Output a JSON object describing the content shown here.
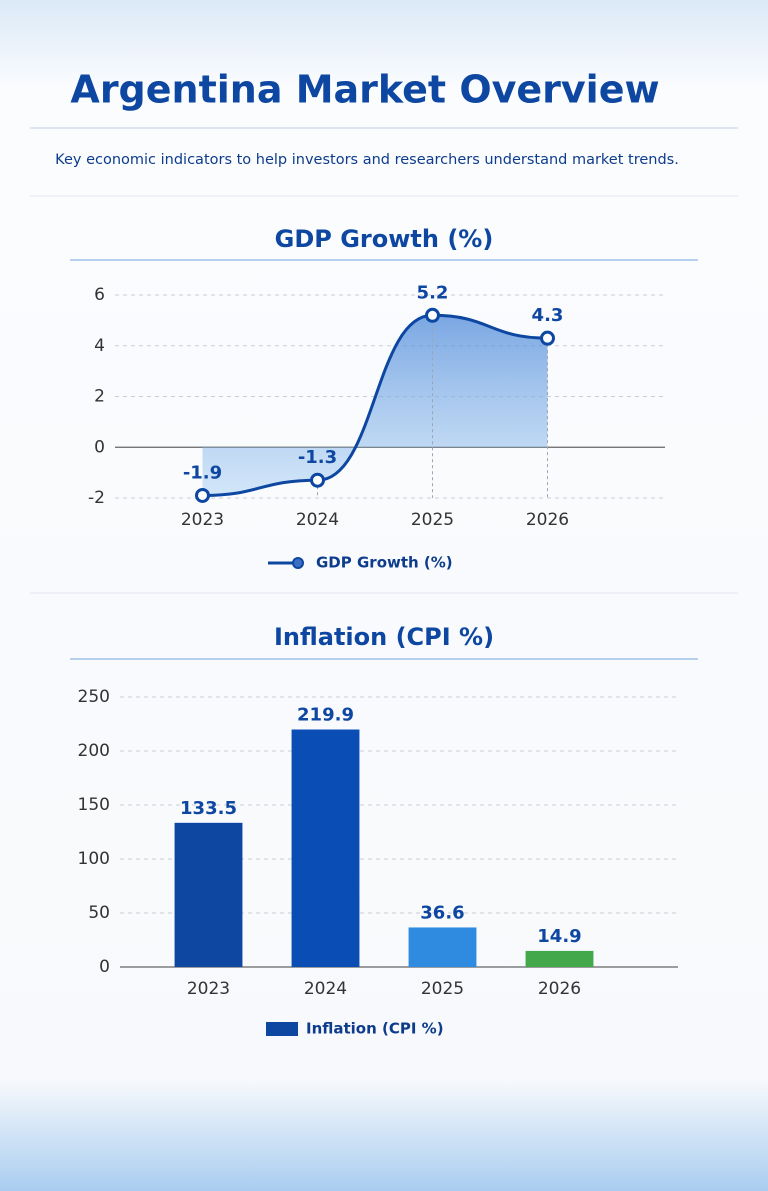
{
  "title": "Argentina Market Overview",
  "subtitle": "Key economic indicators to help investors and researchers understand market trends.",
  "chart_data": [
    {
      "type": "line",
      "title": "GDP Growth (%)",
      "categories": [
        "2023",
        "2024",
        "2025",
        "2026"
      ],
      "series": [
        {
          "name": "GDP Growth (%)",
          "color": "#0d47a1",
          "values": [
            -1.9,
            -1.3,
            5.2,
            4.3
          ]
        }
      ],
      "ylim": [
        -2,
        6
      ],
      "yticks": [
        -2,
        0,
        2,
        4,
        6
      ],
      "grid": true,
      "legend": "bottom"
    },
    {
      "type": "bar",
      "title": "Inflation (CPI %)",
      "categories": [
        "2023",
        "2024",
        "2025",
        "2026"
      ],
      "series": [
        {
          "name": "Inflation (CPI %)",
          "color": "#0d47a1",
          "colors": [
            "#0d47a1",
            "#0a4db5",
            "#2e8be0",
            "#43a84a"
          ],
          "values": [
            133.5,
            219.9,
            36.6,
            14.9
          ]
        }
      ],
      "ylim": [
        0,
        250
      ],
      "yticks": [
        0,
        50,
        100,
        150,
        200,
        250
      ],
      "grid": true,
      "legend": "bottom"
    }
  ]
}
